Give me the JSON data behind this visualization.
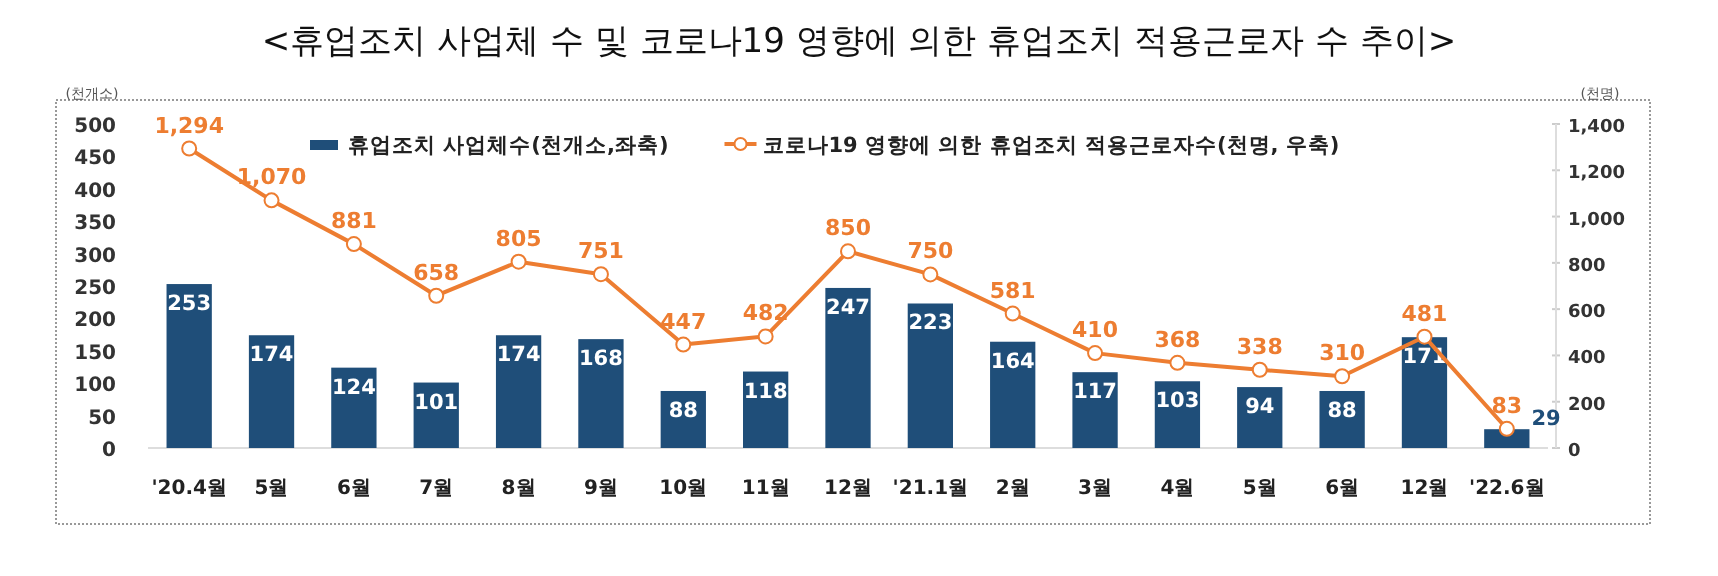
{
  "chart_data": {
    "type": "bar",
    "title": "<휴업조치 사업체 수 및 코로나19 영향에 의한 휴업조치 적용근로자 수 추이>",
    "ylabel": "(천개소)",
    "y2label": "(천명)",
    "categories": [
      "'20.4월",
      "5월",
      "6월",
      "7월",
      "8월",
      "9월",
      "10월",
      "11월",
      "12월",
      "'21.1월",
      "2월",
      "3월",
      "4월",
      "5월",
      "6월",
      "12월",
      "'22.6월"
    ],
    "series": [
      {
        "name": "휴업조치 사업체수(천개소,좌축)",
        "color": "#1f4e79",
        "values": [
          253,
          174,
          124,
          101,
          174,
          168,
          88,
          118,
          247,
          223,
          164,
          117,
          103,
          94,
          88,
          171,
          29
        ]
      },
      {
        "name": "코로나19 영향에 의한 휴업조치 적용근로자수(천명, 우축)",
        "type": "line",
        "axis": "y2",
        "color": "#ed7d31",
        "values": [
          1294,
          1070,
          881,
          658,
          805,
          751,
          447,
          482,
          850,
          750,
          581,
          410,
          368,
          338,
          310,
          481,
          83
        ],
        "value_labels": [
          "1,294",
          "1,070",
          "881",
          "658",
          "805",
          "751",
          "447",
          "482",
          "850",
          "750",
          "581",
          "410",
          "368",
          "338",
          "310",
          "481",
          "83"
        ]
      }
    ],
    "ylim": [
      0,
      500
    ],
    "yticks": [
      0,
      50,
      100,
      150,
      200,
      250,
      300,
      350,
      400,
      450,
      500
    ],
    "y2lim": [
      0,
      1400
    ],
    "y2ticks": [
      0,
      {
        "value": 200,
        "label": "200"
      },
      {
        "value": 400,
        "label": "400"
      },
      {
        "value": 600,
        "label": "600"
      },
      {
        "value": 800,
        "label": "800"
      },
      {
        "value": 1000,
        "label": "1,000"
      },
      {
        "value": 1200,
        "label": "1,200"
      },
      {
        "value": 1400,
        "label": "1,400"
      }
    ],
    "data_labels": true,
    "legend": "top",
    "marker": "circle",
    "line_style": "solid"
  }
}
